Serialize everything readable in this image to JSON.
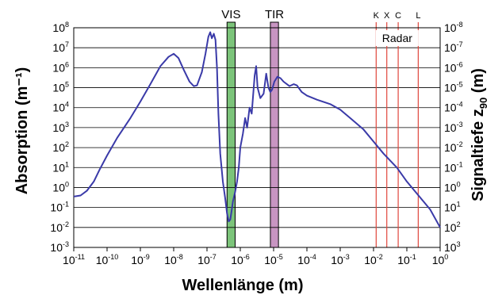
{
  "chart_data": {
    "type": "line",
    "xscale": "log",
    "yscale": "log",
    "xlim": [
      1e-11,
      1
    ],
    "ylim": [
      0.001,
      100000000
    ],
    "xlabel": "Wellenlänge (m)",
    "ylabel_left": "Absorption (m⁻¹)",
    "ylabel_right": "Signaltiefe z",
    "ylabel_right_sub": "90",
    "ylabel_right_unit": " (m)",
    "grid": "horizontal",
    "x_tick_exponents": [
      -11,
      -10,
      -9,
      -8,
      -7,
      -6,
      -5,
      -4,
      -3,
      -2,
      -1,
      0
    ],
    "y_left_tick_exponents": [
      8,
      7,
      6,
      5,
      4,
      3,
      2,
      1,
      0,
      -1,
      -2,
      -3
    ],
    "y_right_tick_exponents": [
      -8,
      -7,
      -6,
      -5,
      -4,
      -3,
      -2,
      -1,
      0,
      1,
      2,
      3
    ],
    "tick_base": "10",
    "bands": [
      {
        "label": "VIS",
        "from": 4e-07,
        "to": 7e-07,
        "color": "#7cc47a"
      },
      {
        "label": "TIR",
        "from": 8e-06,
        "to": 1.4e-05,
        "color": "#c895c2"
      }
    ],
    "radar": {
      "label": "Radar",
      "line_color": "#e0463c",
      "bands": [
        {
          "label": "K",
          "x": 0.012
        },
        {
          "label": "X",
          "x": 0.025
        },
        {
          "label": "C",
          "x": 0.055
        },
        {
          "label": "L",
          "x": 0.22
        }
      ]
    },
    "series": [
      {
        "color": "#3a3aa8",
        "points": [
          [
            1e-11,
            0.35
          ],
          [
            1.6e-11,
            0.4
          ],
          [
            2.5e-11,
            0.7
          ],
          [
            4e-11,
            2
          ],
          [
            6e-11,
            8
          ],
          [
            1e-10,
            40
          ],
          [
            2e-10,
            300
          ],
          [
            5e-10,
            3000
          ],
          [
            1e-09,
            20000
          ],
          [
            2e-09,
            150000
          ],
          [
            4e-09,
            1200000
          ],
          [
            7e-09,
            3500000
          ],
          [
            1e-08,
            5000000
          ],
          [
            1.4e-08,
            3000000
          ],
          [
            2e-08,
            800000
          ],
          [
            3e-08,
            200000
          ],
          [
            4e-08,
            120000
          ],
          [
            5e-08,
            130000
          ],
          [
            7e-08,
            600000
          ],
          [
            9e-08,
            5000000
          ],
          [
            1.1e-07,
            35000000
          ],
          [
            1.25e-07,
            60000000
          ],
          [
            1.4e-07,
            30000000
          ],
          [
            1.6e-07,
            50000000
          ],
          [
            1.8e-07,
            25000000
          ],
          [
            2e-07,
            1000000
          ],
          [
            2.2e-07,
            5000
          ],
          [
            2.5e-07,
            50
          ],
          [
            3e-07,
            2
          ],
          [
            3.5e-07,
            0.3
          ],
          [
            4e-07,
            0.05
          ],
          [
            4.5e-07,
            0.02
          ],
          [
            5e-07,
            0.025
          ],
          [
            5.5e-07,
            0.07
          ],
          [
            6e-07,
            0.2
          ],
          [
            7e-07,
            0.6
          ],
          [
            8e-07,
            2
          ],
          [
            9e-07,
            10
          ],
          [
            1e-06,
            100
          ],
          [
            1.2e-06,
            500
          ],
          [
            1.4e-06,
            3000
          ],
          [
            1.6e-06,
            1000
          ],
          [
            1.9e-06,
            10000
          ],
          [
            2.2e-06,
            5000
          ],
          [
            2.7e-06,
            400000
          ],
          [
            3e-06,
            1200000
          ],
          [
            3.3e-06,
            100000
          ],
          [
            4e-06,
            30000
          ],
          [
            5e-06,
            50000
          ],
          [
            6e-06,
            500000
          ],
          [
            7e-06,
            100000
          ],
          [
            8e-06,
            60000
          ],
          [
            9e-06,
            80000
          ],
          [
            1.05e-05,
            200000
          ],
          [
            1.3e-05,
            350000
          ],
          [
            1.6e-05,
            300000
          ],
          [
            2e-05,
            200000
          ],
          [
            3e-05,
            120000
          ],
          [
            4e-05,
            150000
          ],
          [
            5e-05,
            130000
          ],
          [
            7e-05,
            60000
          ],
          [
            0.0001,
            40000
          ],
          [
            0.0002,
            25000
          ],
          [
            0.0005,
            15000
          ],
          [
            0.001,
            8000
          ],
          [
            0.002,
            3000
          ],
          [
            0.005,
            800
          ],
          [
            0.01,
            200
          ],
          [
            0.02,
            50
          ],
          [
            0.05,
            10
          ],
          [
            0.1,
            2
          ],
          [
            0.2,
            0.5
          ],
          [
            0.5,
            0.08
          ],
          [
            1,
            0.01
          ]
        ]
      }
    ]
  }
}
